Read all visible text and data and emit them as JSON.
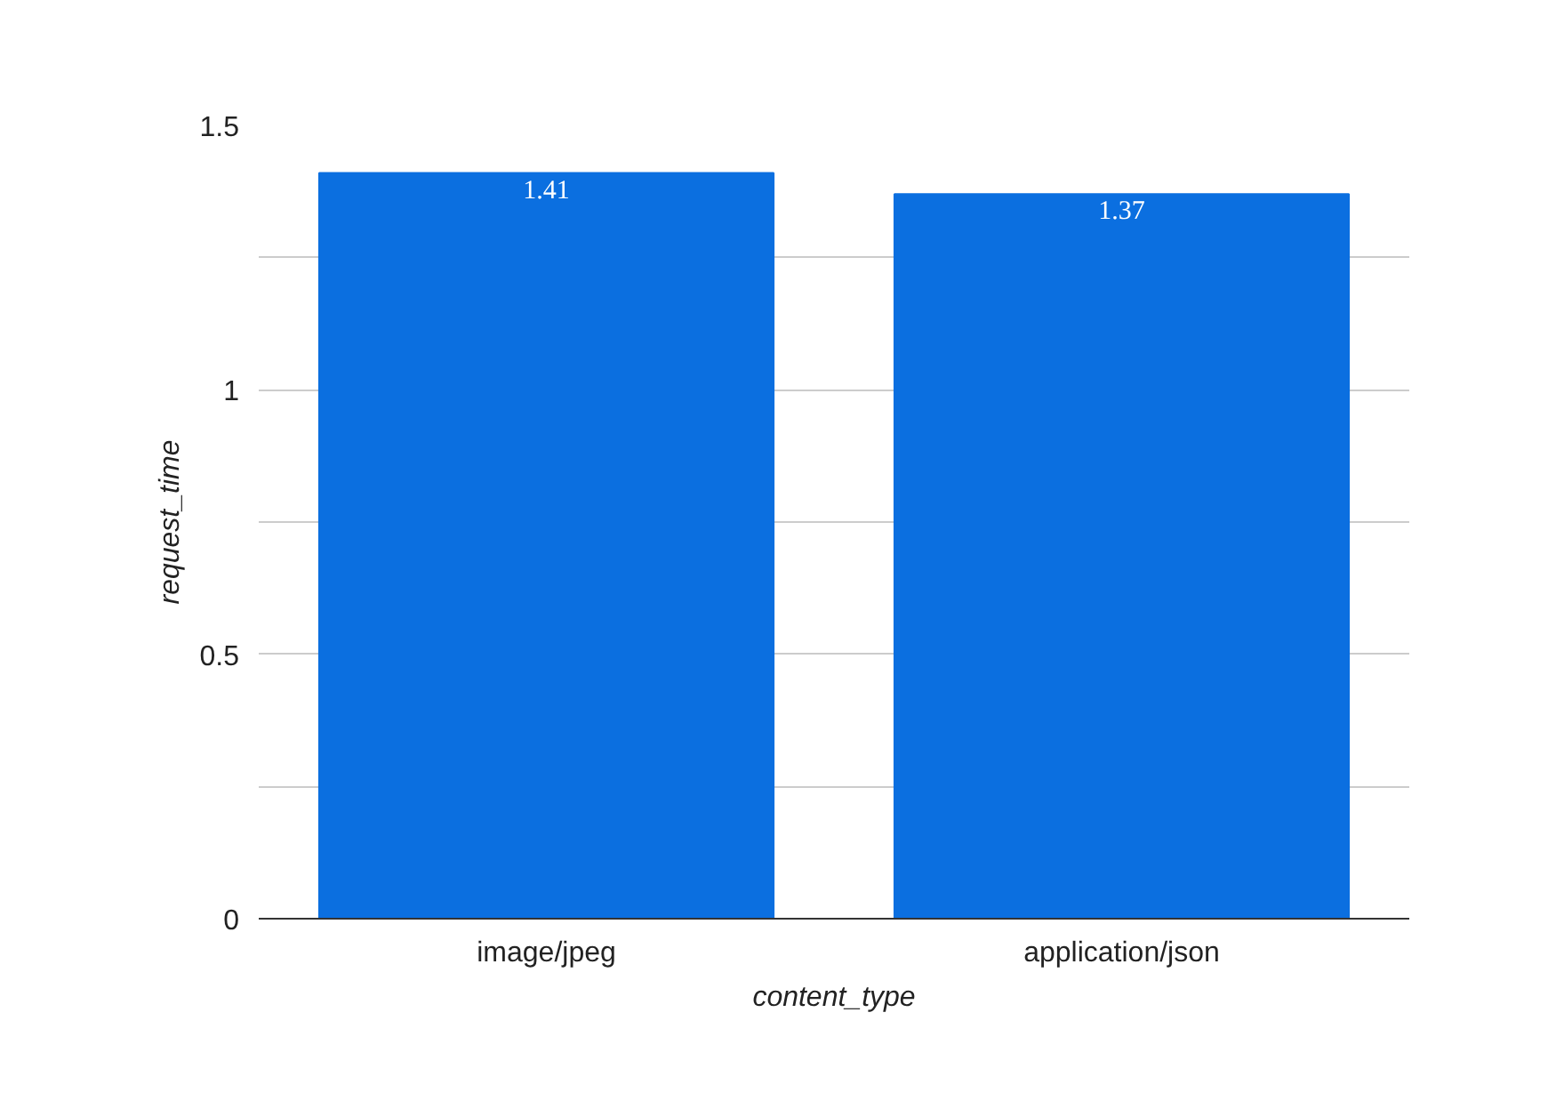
{
  "chart_data": {
    "type": "bar",
    "xlabel": "content_type",
    "ylabel": "request_time",
    "categories": [
      "image/jpeg",
      "application/json"
    ],
    "series": [
      {
        "color": "#0b6fe0",
        "values": [
          1.41,
          1.37
        ]
      }
    ],
    "ylim": [
      0,
      1.5
    ],
    "yticks": [
      0,
      {
        "value": 0.25,
        "label": null
      },
      0.5,
      {
        "value": 0.75,
        "label": null
      },
      1,
      {
        "value": 1.25,
        "label": null
      },
      1.5
    ],
    "grid": "y",
    "data_labels": true
  }
}
